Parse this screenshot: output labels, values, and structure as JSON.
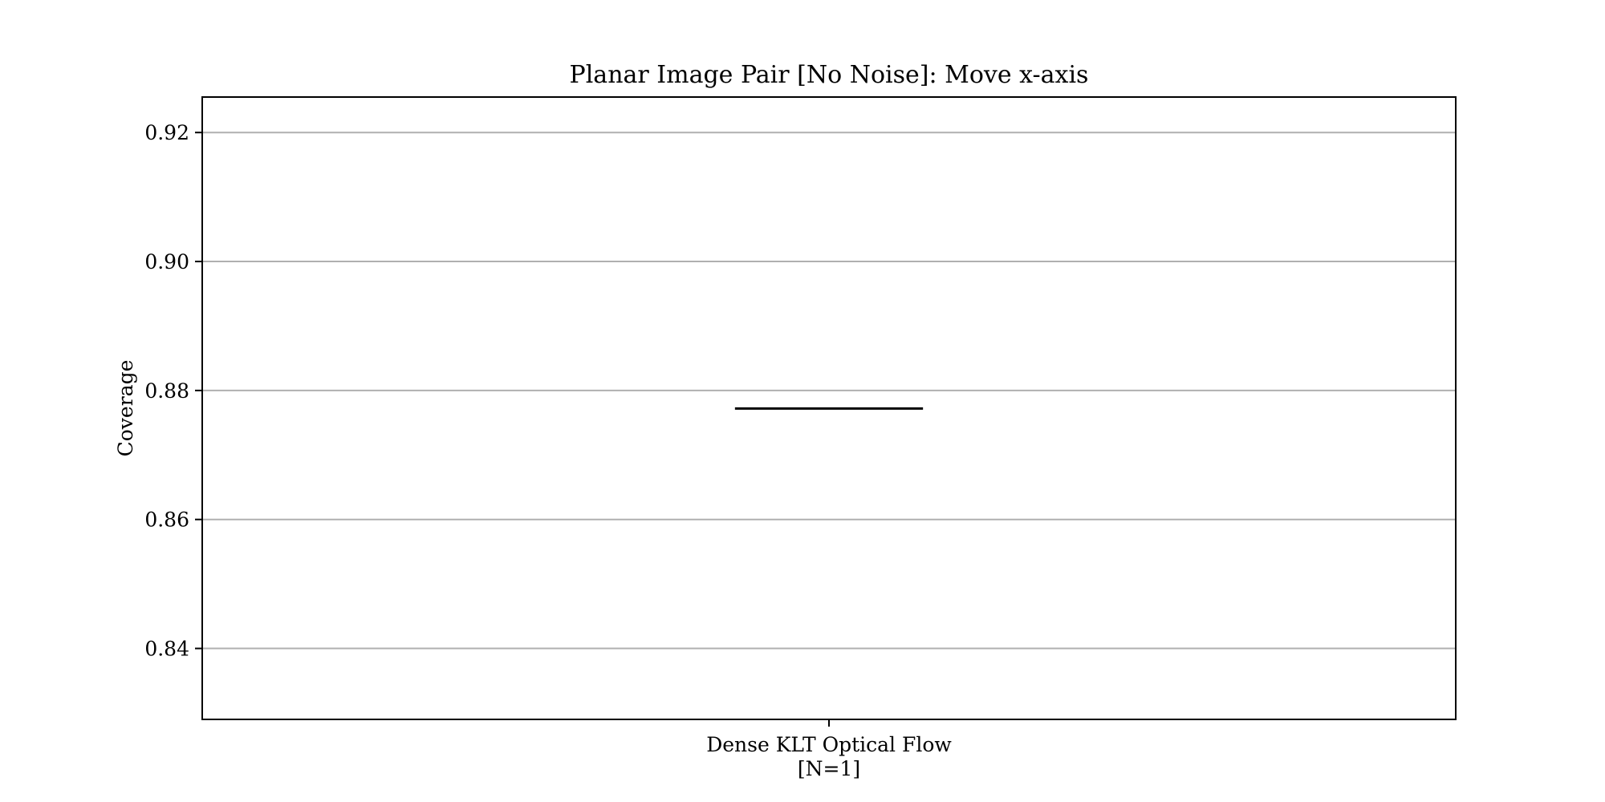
{
  "chart_data": {
    "type": "box",
    "title": "Planar Image Pair [No Noise]: Move x-axis",
    "xlabel": "",
    "ylabel": "Coverage",
    "ylim": [
      0.829,
      0.9255
    ],
    "yticks": [
      0.84,
      0.86,
      0.88,
      0.9,
      0.92
    ],
    "ytick_labels": [
      "0.84",
      "0.86",
      "0.88",
      "0.90",
      "0.92"
    ],
    "grid": "horizontal",
    "categories": [
      {
        "label": "Dense KLT Optical Flow",
        "sublabel": "[N=1]"
      }
    ],
    "series": [
      {
        "values": [
          0.8772
        ],
        "median": 0.8772
      }
    ],
    "colors": {
      "grid": "#b0b0b0",
      "axes": "#000000",
      "median": "#000000"
    }
  }
}
